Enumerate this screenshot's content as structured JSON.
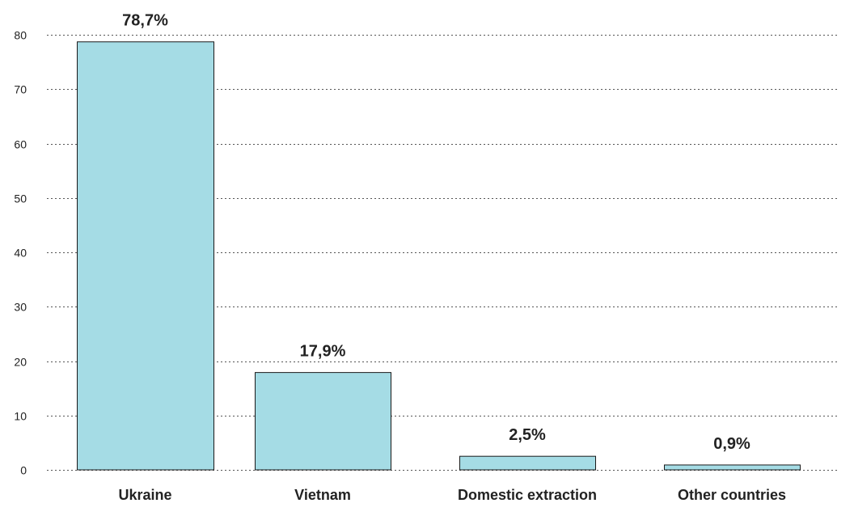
{
  "chart_data": {
    "type": "bar",
    "categories": [
      "Ukraine",
      "Vietnam",
      "Domestic extraction",
      "Other countries"
    ],
    "values": [
      78.7,
      17.9,
      2.5,
      0.9
    ],
    "value_labels": [
      "78,7%",
      "17,9%",
      "2,5%",
      "0,9%"
    ],
    "ylim": [
      0,
      80
    ],
    "yticks": [
      "0",
      "10",
      "20",
      "30",
      "40",
      "50",
      "60",
      "70",
      "80"
    ],
    "grid": true,
    "legend": "none",
    "bar_color": "#a5dce5"
  }
}
